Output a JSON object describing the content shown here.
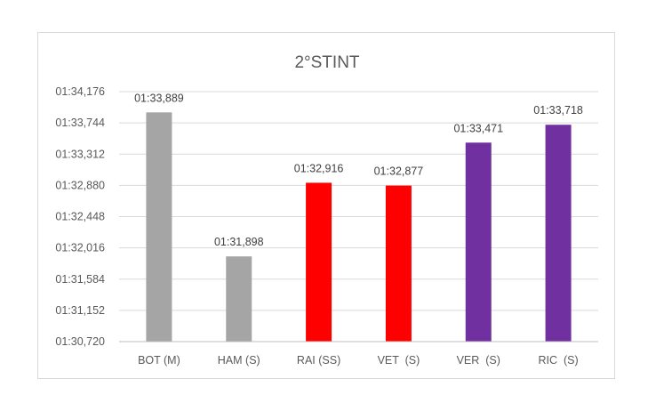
{
  "chart_data": {
    "type": "bar",
    "title": "2°STINT",
    "xlabel": "",
    "ylabel": "",
    "grid": true,
    "categories": [
      "BOT (M)",
      "HAM (S)",
      "RAI (SS)",
      "VET  (S)",
      "VER  (S)",
      "RIC  (S)"
    ],
    "values_seconds": [
      93.889,
      91.898,
      92.916,
      92.877,
      93.471,
      93.718
    ],
    "value_labels": [
      "01:33,889",
      "01:31,898",
      "01:32,916",
      "01:32,877",
      "01:33,471",
      "01:33,718"
    ],
    "bar_colors": [
      "#a5a5a5",
      "#a5a5a5",
      "#ff0000",
      "#ff0000",
      "#7030a0",
      "#7030a0"
    ],
    "ylim_seconds": [
      90.72,
      94.176
    ],
    "y_ticks_seconds": [
      90.72,
      91.152,
      91.584,
      92.016,
      92.448,
      92.88,
      93.312,
      93.744,
      94.176
    ],
    "y_tick_labels": [
      "01:30,720",
      "01:31,152",
      "01:31,584",
      "01:32,016",
      "01:32,448",
      "01:32,880",
      "01:33,312",
      "01:33,744",
      "01:34,176"
    ]
  }
}
